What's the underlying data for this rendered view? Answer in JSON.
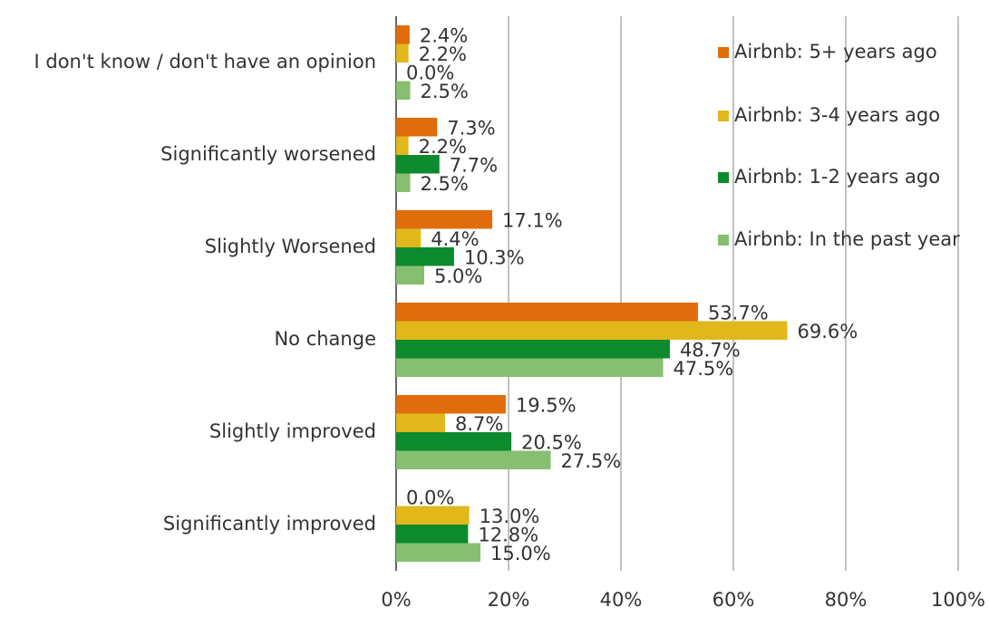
{
  "chart_data": {
    "type": "bar",
    "orientation": "horizontal",
    "categories": [
      "I don't know / don't have an opinion",
      "Significantly worsened",
      "Slightly Worsened",
      "No change",
      "Slightly improved",
      "Significantly improved"
    ],
    "series": [
      {
        "name": "Airbnb: 5+ years ago",
        "color": "#e06c0c",
        "values": [
          2.4,
          7.3,
          17.1,
          53.7,
          19.5,
          0.0
        ],
        "value_labels": [
          "2.4%",
          "7.3%",
          "17.1%",
          "53.7%",
          "19.5%",
          "0.0%"
        ]
      },
      {
        "name": "Airbnb: 3-4 years ago",
        "color": "#e0b81c",
        "values": [
          2.2,
          2.2,
          4.4,
          69.6,
          8.7,
          13.0
        ],
        "value_labels": [
          "2.2%",
          "2.2%",
          "4.4%",
          "69.6%",
          "8.7%",
          "13.0%"
        ]
      },
      {
        "name": "Airbnb: 1-2 years ago",
        "color": "#0e8a2e",
        "values": [
          0.0,
          7.7,
          10.3,
          48.7,
          20.5,
          12.8
        ],
        "value_labels": [
          "0.0%",
          "7.7%",
          "10.3%",
          "48.7%",
          "20.5%",
          "12.8%"
        ]
      },
      {
        "name": "Airbnb: In the past year",
        "color": "#85bf6f",
        "values": [
          2.5,
          2.5,
          5.0,
          47.5,
          27.5,
          15.0
        ],
        "value_labels": [
          "2.5%",
          "2.5%",
          "5.0%",
          "47.5%",
          "27.5%",
          "15.0%"
        ]
      }
    ],
    "xlim": [
      0,
      100
    ],
    "xticks": [
      {
        "value": 0,
        "label": "0%"
      },
      {
        "value": 20,
        "label": "20%"
      },
      {
        "value": 40,
        "label": "40%"
      },
      {
        "value": 60,
        "label": "60%"
      },
      {
        "value": 80,
        "label": "80%"
      },
      {
        "value": 100,
        "label": "100%"
      }
    ],
    "grid": true,
    "legend": "upper right"
  }
}
